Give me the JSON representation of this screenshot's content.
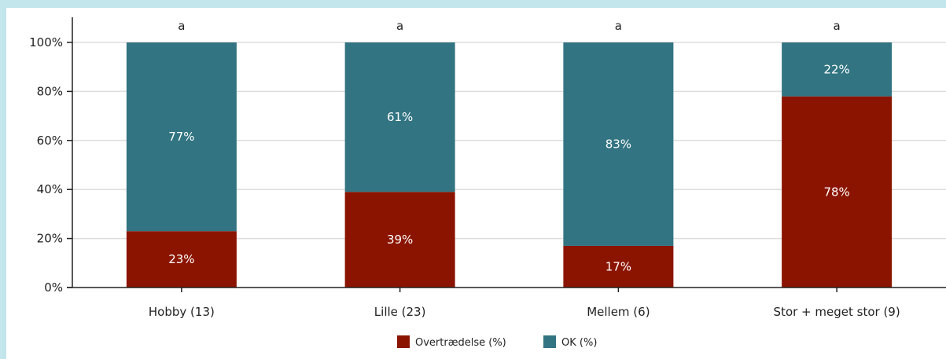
{
  "chart_data": {
    "type": "bar",
    "stacked": true,
    "categories": [
      "Hobby (13)",
      "Lille (23)",
      "Mellem (6)",
      "Stor + meget stor (9)"
    ],
    "significance_labels": [
      "a",
      "a",
      "a",
      "a"
    ],
    "series": [
      {
        "name": "Overtrædelse (%)",
        "color": "#8b1400",
        "values": [
          23,
          39,
          17,
          78
        ],
        "labels": [
          "23%",
          "39%",
          "17%",
          "78%"
        ]
      },
      {
        "name": "OK (%)",
        "color": "#327482",
        "values": [
          77,
          61,
          83,
          22
        ],
        "labels": [
          "77%",
          "61%",
          "83%",
          "22%"
        ]
      }
    ],
    "ylim": [
      0,
      100
    ],
    "yticks": [
      0,
      20,
      40,
      60,
      80,
      100
    ],
    "ytick_labels": [
      "0%",
      "20%",
      "40%",
      "60%",
      "80%",
      "100%"
    ],
    "grid": true,
    "legend_position": "bottom"
  },
  "colors": {
    "background": "#c3e5ec",
    "panel": "#ffffff",
    "grid": "#dddddd",
    "axis": "#222222"
  }
}
